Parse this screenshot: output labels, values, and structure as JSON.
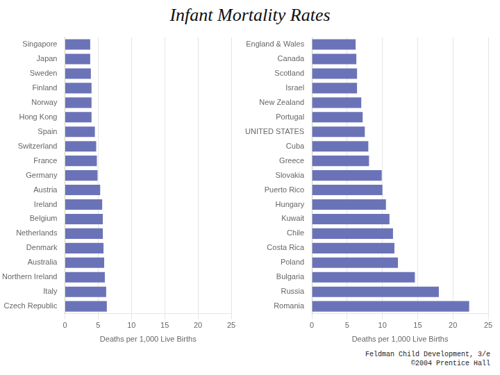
{
  "title": "Infant Mortality Rates",
  "subtitle": "Feldman Child Development, 3/e\n©2004 Prentice Hall",
  "chart_data": [
    {
      "type": "bar",
      "orientation": "horizontal",
      "categories": [
        "Singapore",
        "Japan",
        "Sweden",
        "Finland",
        "Norway",
        "Hong Kong",
        "Spain",
        "Switzerland",
        "France",
        "Germany",
        "Austria",
        "Ireland",
        "Belgium",
        "Netherlands",
        "Denmark",
        "Australia",
        "Northern Ireland",
        "Italy",
        "Czech Republic"
      ],
      "values": [
        3.8,
        3.8,
        3.9,
        4.0,
        4.0,
        4.0,
        4.5,
        4.7,
        4.8,
        4.9,
        5.3,
        5.6,
        5.7,
        5.7,
        5.8,
        5.9,
        6.0,
        6.2,
        6.3
      ],
      "color": "#6b73b8",
      "xlabel": "Deaths per 1,000 Live Births",
      "xlim": [
        0,
        25
      ],
      "xticks": [
        0,
        5,
        10,
        15,
        20,
        25
      ],
      "grid": true
    },
    {
      "type": "bar",
      "orientation": "horizontal",
      "categories": [
        "England & Wales",
        "Canada",
        "Scotland",
        "Israel",
        "New Zealand",
        "Portugal",
        "UNITED STATES",
        "Cuba",
        "Greece",
        "Slovakia",
        "Puerto Rico",
        "Hungary",
        "Kuwait",
        "Chile",
        "Costa Rica",
        "Poland",
        "Bulgaria",
        "Russia",
        "Romania"
      ],
      "values": [
        6.2,
        6.3,
        6.4,
        6.4,
        7.0,
        7.2,
        7.5,
        8.0,
        8.1,
        9.9,
        10.0,
        10.5,
        11.0,
        11.5,
        11.7,
        12.2,
        14.6,
        18.0,
        22.3
      ],
      "color": "#6b73b8",
      "xlabel": "Deaths per 1,000 Live Births",
      "xlim": [
        0,
        25
      ],
      "xticks": [
        0,
        5,
        10,
        15,
        20,
        25
      ],
      "grid": true
    }
  ]
}
